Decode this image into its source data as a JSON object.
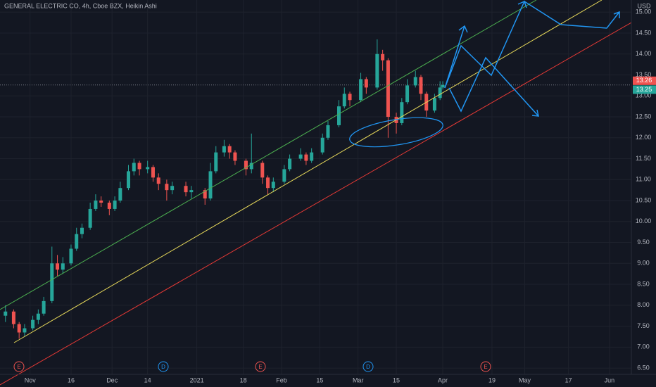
{
  "chart_data": {
    "type": "candlestick",
    "title": "GENERAL ELECTRIC CO, 4h, Cboe BZX, Heikin Ashi",
    "currency": "USD",
    "up_color": "#26a69a",
    "down_color": "#ef5350",
    "dates": [
      "2020-10-23",
      "2020-10-26",
      "2020-10-28",
      "2020-10-30",
      "2020-11-02",
      "2020-11-04",
      "2020-11-06",
      "2020-11-09",
      "2020-11-11",
      "2020-11-13",
      "2020-11-16",
      "2020-11-18",
      "2020-11-20",
      "2020-11-23",
      "2020-11-25",
      "2020-11-27",
      "2020-11-30",
      "2020-12-02",
      "2020-12-04",
      "2020-12-07",
      "2020-12-09",
      "2020-12-11",
      "2020-12-14",
      "2020-12-16",
      "2020-12-18",
      "2020-12-21",
      "2020-12-23",
      "2020-12-28",
      "2020-12-30",
      "2021-01-04",
      "2021-01-06",
      "2021-01-08",
      "2021-01-11",
      "2021-01-13",
      "2021-01-15",
      "2021-01-19",
      "2021-01-21",
      "2021-01-25",
      "2021-01-27",
      "2021-01-29",
      "2021-02-02",
      "2021-02-04",
      "2021-02-08",
      "2021-02-10",
      "2021-02-12",
      "2021-02-16",
      "2021-02-18",
      "2021-02-22",
      "2021-02-24",
      "2021-02-26",
      "2021-03-02",
      "2021-03-04",
      "2021-03-08",
      "2021-03-10",
      "2021-03-12",
      "2021-03-15",
      "2021-03-17",
      "2021-03-19",
      "2021-03-22",
      "2021-03-24",
      "2021-03-26",
      "2021-03-29",
      "2021-03-31",
      "2021-04-01"
    ],
    "open": [
      7.75,
      7.85,
      7.55,
      7.35,
      7.45,
      7.65,
      7.8,
      8.1,
      9.0,
      8.85,
      9.0,
      9.35,
      9.7,
      9.85,
      10.3,
      10.5,
      10.45,
      10.3,
      10.5,
      10.8,
      11.2,
      11.4,
      11.25,
      11.3,
      11.05,
      10.9,
      10.75,
      10.85,
      10.7,
      10.75,
      10.55,
      11.2,
      11.65,
      11.8,
      11.65,
      11.45,
      11.25,
      11.4,
      11.05,
      10.8,
      10.95,
      11.25,
      11.5,
      11.6,
      11.45,
      11.65,
      12.0,
      12.3,
      12.75,
      13.05,
      12.9,
      13.4,
      13.2,
      14.0,
      13.85,
      12.5,
      12.35,
      12.85,
      13.25,
      13.45,
      13.05,
      12.65,
      12.95,
      13.2
    ],
    "high": [
      8.0,
      7.9,
      7.6,
      7.55,
      7.75,
      7.9,
      8.2,
      9.4,
      9.2,
      9.15,
      9.45,
      9.85,
      9.95,
      10.45,
      10.65,
      10.6,
      10.5,
      10.6,
      10.95,
      11.35,
      11.5,
      11.45,
      11.45,
      11.35,
      11.15,
      11.0,
      10.95,
      10.95,
      10.85,
      10.8,
      11.4,
      11.8,
      11.95,
      11.85,
      11.7,
      11.5,
      12.1,
      11.45,
      11.1,
      11.05,
      11.35,
      11.6,
      11.75,
      11.65,
      11.75,
      12.1,
      12.4,
      12.9,
      13.2,
      13.1,
      13.55,
      13.45,
      14.35,
      14.1,
      13.9,
      12.6,
      12.95,
      13.4,
      13.6,
      13.5,
      13.1,
      13.05,
      13.35,
      13.35
    ],
    "low": [
      7.6,
      7.45,
      7.2,
      7.25,
      7.4,
      7.55,
      7.75,
      8.05,
      8.7,
      8.75,
      8.95,
      9.3,
      9.6,
      9.8,
      10.25,
      10.35,
      10.15,
      10.25,
      10.45,
      10.75,
      11.1,
      11.1,
      11.15,
      10.95,
      10.75,
      10.5,
      10.65,
      10.6,
      10.55,
      10.4,
      10.5,
      11.15,
      11.55,
      11.5,
      11.35,
      11.1,
      11.15,
      10.9,
      10.65,
      10.7,
      10.9,
      11.2,
      11.45,
      11.35,
      11.4,
      11.6,
      11.95,
      12.25,
      12.7,
      12.75,
      12.85,
      13.05,
      13.15,
      13.6,
      12.0,
      12.1,
      12.3,
      12.8,
      13.2,
      12.9,
      12.5,
      12.6,
      12.9,
      13.15
    ],
    "close": [
      7.85,
      7.55,
      7.35,
      7.45,
      7.65,
      7.8,
      8.1,
      9.0,
      8.85,
      9.0,
      9.35,
      9.7,
      9.85,
      10.3,
      10.5,
      10.45,
      10.3,
      10.5,
      10.8,
      11.2,
      11.4,
      11.25,
      11.3,
      11.05,
      10.9,
      10.75,
      10.85,
      10.7,
      10.75,
      10.55,
      11.2,
      11.65,
      11.8,
      11.65,
      11.45,
      11.25,
      11.4,
      11.05,
      10.8,
      10.95,
      11.25,
      11.5,
      11.6,
      11.45,
      11.65,
      12.0,
      12.3,
      12.75,
      13.05,
      12.9,
      13.4,
      13.2,
      14.0,
      13.85,
      12.5,
      12.35,
      12.85,
      13.25,
      13.45,
      13.05,
      12.65,
      12.95,
      13.2,
      13.26
    ],
    "last_prices": [
      {
        "value": 13.26,
        "color": "#ef5350"
      },
      {
        "value": 13.25,
        "color": "#26a69a"
      }
    ],
    "xlim": [
      "2020-10-21",
      "2021-06-09"
    ],
    "xticks": [
      {
        "value": "2020-11-01",
        "label": "Nov"
      },
      {
        "value": "2020-11-16",
        "label": "16"
      },
      {
        "value": "2020-12-01",
        "label": "Dec"
      },
      {
        "value": "2020-12-14",
        "label": "14"
      },
      {
        "value": "2021-01-01",
        "label": "2021"
      },
      {
        "value": "2021-01-18",
        "label": "18"
      },
      {
        "value": "2021-02-01",
        "label": "Feb"
      },
      {
        "value": "2021-02-15",
        "label": "15"
      },
      {
        "value": "2021-03-01",
        "label": "Mar"
      },
      {
        "value": "2021-03-15",
        "label": "15"
      },
      {
        "value": "2021-04-01",
        "label": "Apr"
      },
      {
        "value": "2021-04-19",
        "label": "19"
      },
      {
        "value": "2021-05-01",
        "label": "May"
      },
      {
        "value": "2021-05-17",
        "label": "17"
      },
      {
        "value": "2021-06-01",
        "label": "Jun"
      }
    ],
    "ylim": [
      6.35,
      15.29
    ],
    "yticks": [
      {
        "value": 6.5,
        "label": "6.50"
      },
      {
        "value": 7,
        "label": "7.00"
      },
      {
        "value": 7.5,
        "label": "7.50"
      },
      {
        "value": 8,
        "label": "8.00"
      },
      {
        "value": 8.5,
        "label": "8.50"
      },
      {
        "value": 9,
        "label": "9.00"
      },
      {
        "value": 9.5,
        "label": "9.50"
      },
      {
        "value": 10,
        "label": "10.00"
      },
      {
        "value": 10.5,
        "label": "10.50"
      },
      {
        "value": 11,
        "label": "11.00"
      },
      {
        "value": 11.5,
        "label": "11.50"
      },
      {
        "value": 12,
        "label": "12.00"
      },
      {
        "value": 12.5,
        "label": "12.50"
      },
      {
        "value": 13,
        "label": "13.00"
      },
      {
        "value": 13.5,
        "label": "13.50"
      },
      {
        "value": 14,
        "label": "14.00"
      },
      {
        "value": 14.5,
        "label": "14.50"
      },
      {
        "value": 15,
        "label": "15.00"
      }
    ],
    "events": [
      "E",
      "D",
      "E",
      "D",
      "E"
    ]
  }
}
